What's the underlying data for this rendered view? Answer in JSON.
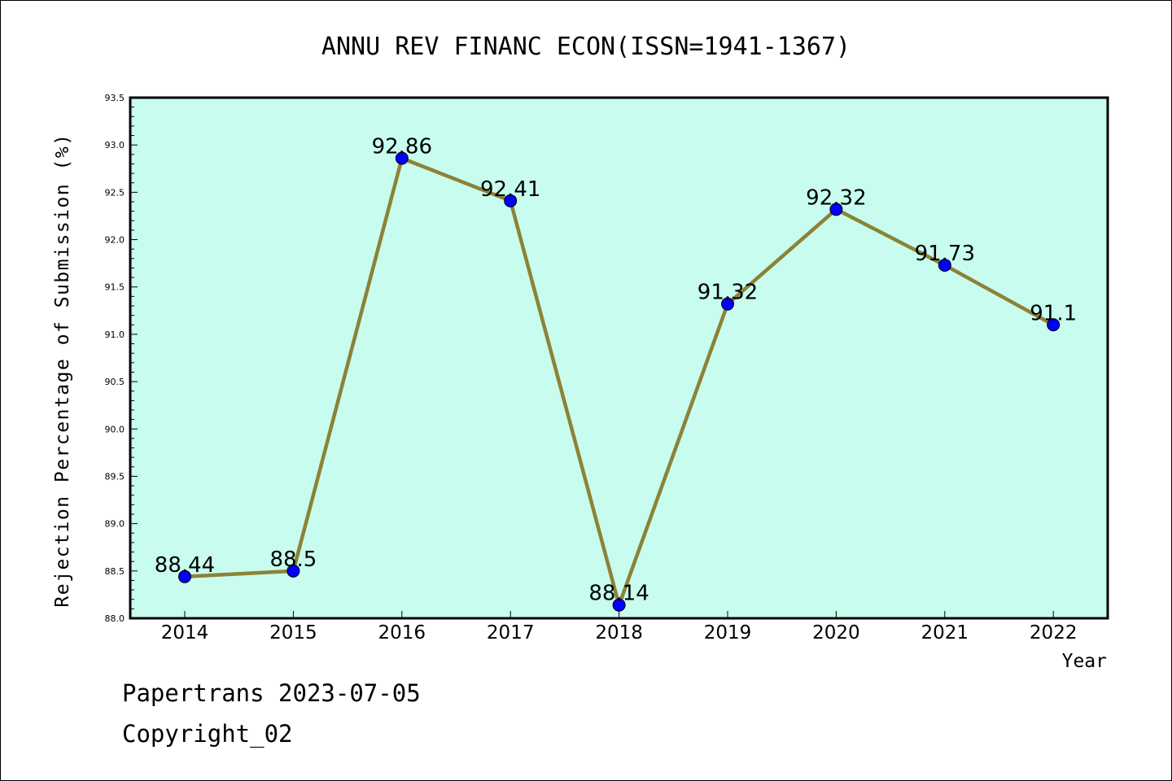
{
  "chart_data": {
    "type": "line",
    "title": "ANNU REV FINANC ECON(ISSN=1941-1367)",
    "xlabel": "Year",
    "ylabel": "Rejection Percentage of Submission (%)",
    "categories": [
      "2014",
      "2015",
      "2016",
      "2017",
      "2018",
      "2019",
      "2020",
      "2021",
      "2022"
    ],
    "values": [
      88.44,
      88.5,
      92.86,
      92.41,
      88.14,
      91.32,
      92.32,
      91.73,
      91.1
    ],
    "data_labels": [
      "88.44",
      "88.5",
      "92.86",
      "92.41",
      "88.14",
      "91.32",
      "92.32",
      "91.73",
      "91.1"
    ],
    "ylim": [
      88.0,
      93.5
    ],
    "yticks": [
      "88.0",
      "88.5",
      "89.0",
      "89.5",
      "90.0",
      "90.5",
      "91.0",
      "91.5",
      "92.0",
      "92.5",
      "93.0",
      "93.5"
    ],
    "grid": false,
    "legend": "none",
    "colors": {
      "plot_background": "#c8fcee",
      "line": "#8c8238",
      "marker": "#0000ff"
    }
  },
  "footer": {
    "line1": "Papertrans 2023-07-05",
    "line2": "Copyright_02"
  }
}
